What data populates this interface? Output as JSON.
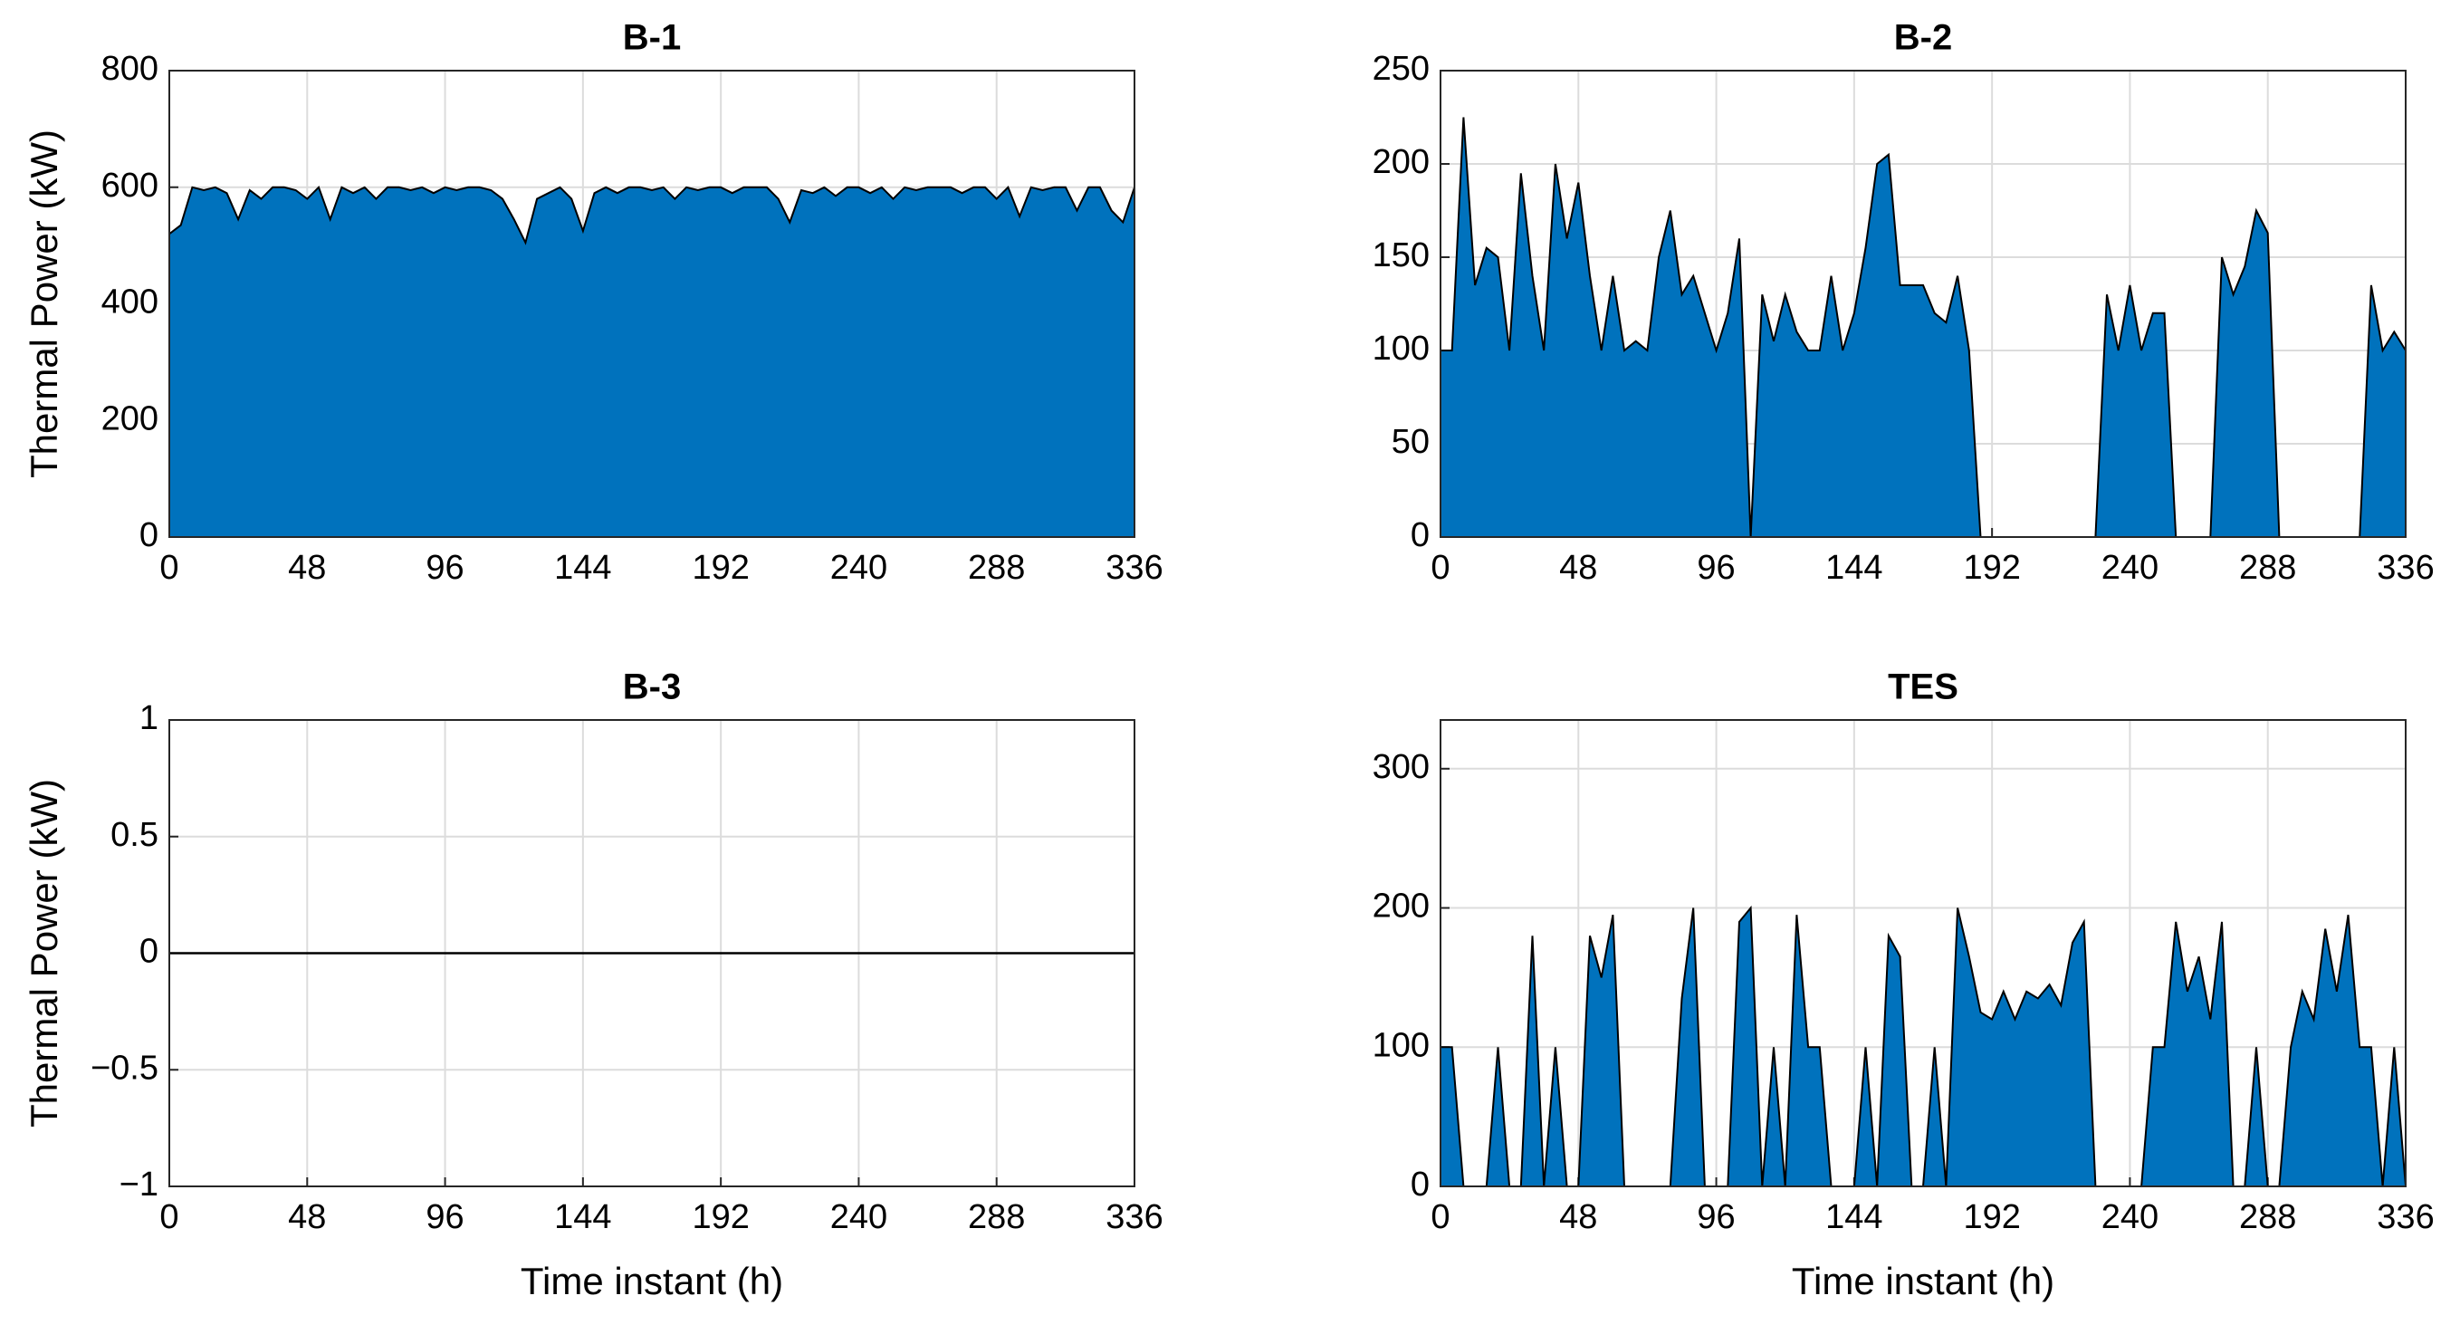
{
  "chart_data": [
    {
      "type": "area",
      "title": "B-1",
      "ylabel": "Thermal Power (kW)",
      "color": "#0072bd",
      "edge_color": "#000000",
      "grid": true,
      "xlim": [
        0,
        336
      ],
      "xticks": [
        0,
        48,
        96,
        144,
        192,
        240,
        288,
        336
      ],
      "ylim": [
        0,
        800
      ],
      "yticks": [
        0,
        200,
        400,
        600,
        800
      ],
      "x": [
        0,
        4,
        8,
        12,
        16,
        20,
        24,
        28,
        32,
        36,
        40,
        44,
        48,
        52,
        56,
        60,
        64,
        68,
        72,
        76,
        80,
        84,
        88,
        92,
        96,
        100,
        104,
        108,
        112,
        116,
        120,
        124,
        128,
        132,
        136,
        140,
        144,
        148,
        152,
        156,
        160,
        164,
        168,
        172,
        176,
        180,
        184,
        188,
        192,
        196,
        200,
        204,
        208,
        212,
        216,
        220,
        224,
        228,
        232,
        236,
        240,
        244,
        248,
        252,
        256,
        260,
        264,
        268,
        272,
        276,
        280,
        284,
        288,
        292,
        296,
        300,
        304,
        308,
        312,
        316,
        320,
        324,
        328,
        332,
        336
      ],
      "values": [
        520,
        535,
        600,
        595,
        600,
        590,
        545,
        595,
        580,
        600,
        600,
        595,
        580,
        600,
        545,
        600,
        590,
        600,
        580,
        600,
        600,
        595,
        600,
        590,
        600,
        595,
        600,
        600,
        595,
        580,
        545,
        505,
        580,
        590,
        600,
        580,
        525,
        590,
        600,
        590,
        600,
        600,
        595,
        600,
        580,
        600,
        595,
        600,
        600,
        590,
        600,
        600,
        600,
        580,
        540,
        595,
        590,
        600,
        585,
        600,
        600,
        590,
        600,
        580,
        600,
        595,
        600,
        600,
        600,
        590,
        600,
        600,
        580,
        600,
        550,
        600,
        595,
        600,
        600,
        560,
        600,
        600,
        560,
        540,
        600
      ]
    },
    {
      "type": "area",
      "title": "B-2",
      "color": "#0072bd",
      "edge_color": "#000000",
      "grid": true,
      "xlim": [
        0,
        336
      ],
      "xticks": [
        0,
        48,
        96,
        144,
        192,
        240,
        288,
        336
      ],
      "ylim": [
        0,
        250
      ],
      "yticks": [
        0,
        50,
        100,
        150,
        200,
        250
      ],
      "x": [
        0,
        4,
        8,
        12,
        16,
        20,
        24,
        28,
        32,
        36,
        40,
        44,
        48,
        52,
        56,
        60,
        64,
        68,
        72,
        76,
        80,
        84,
        88,
        92,
        96,
        100,
        104,
        108,
        112,
        116,
        120,
        124,
        128,
        132,
        136,
        140,
        144,
        148,
        152,
        156,
        160,
        164,
        168,
        172,
        176,
        180,
        184,
        188,
        192,
        196,
        200,
        204,
        208,
        212,
        216,
        220,
        224,
        228,
        232,
        236,
        240,
        244,
        248,
        252,
        256,
        260,
        264,
        268,
        272,
        276,
        280,
        284,
        288,
        292,
        296,
        300,
        304,
        308,
        312,
        316,
        320,
        324,
        328,
        332,
        336
      ],
      "values": [
        100,
        100,
        225,
        135,
        155,
        150,
        100,
        195,
        140,
        100,
        200,
        160,
        190,
        140,
        100,
        140,
        100,
        105,
        100,
        150,
        175,
        130,
        140,
        120,
        100,
        120,
        160,
        0,
        130,
        105,
        130,
        110,
        100,
        100,
        140,
        100,
        120,
        155,
        200,
        205,
        135,
        135,
        135,
        120,
        115,
        140,
        100,
        0,
        0,
        0,
        0,
        0,
        0,
        0,
        0,
        0,
        0,
        0,
        130,
        100,
        135,
        100,
        120,
        120,
        0,
        0,
        0,
        0,
        150,
        130,
        145,
        175,
        163,
        0,
        0,
        0,
        0,
        0,
        0,
        0,
        0,
        135,
        100,
        110,
        100
      ]
    },
    {
      "type": "line",
      "title": "B-3",
      "ylabel": "Thermal Power (kW)",
      "xlabel": "Time instant (h)",
      "color": "#000000",
      "grid": true,
      "xlim": [
        0,
        336
      ],
      "xticks": [
        0,
        48,
        96,
        144,
        192,
        240,
        288,
        336
      ],
      "ylim": [
        -1,
        1
      ],
      "yticks": [
        {
          "value": -1,
          "label": "−1"
        },
        {
          "value": -0.5,
          "label": "−0.5"
        },
        0,
        0.5,
        1
      ],
      "x": [
        0,
        336
      ],
      "values": [
        0,
        0
      ]
    },
    {
      "type": "area",
      "title": "TES",
      "xlabel": "Time instant (h)",
      "color": "#0072bd",
      "edge_color": "#000000",
      "grid": true,
      "xlim": [
        0,
        336
      ],
      "xticks": [
        0,
        48,
        96,
        144,
        192,
        240,
        288,
        336
      ],
      "ylim": [
        0,
        335
      ],
      "yticks": [
        0,
        100,
        200,
        300
      ],
      "x": [
        0,
        4,
        8,
        12,
        16,
        20,
        24,
        28,
        32,
        36,
        40,
        44,
        48,
        52,
        56,
        60,
        64,
        68,
        72,
        76,
        80,
        84,
        88,
        92,
        96,
        100,
        104,
        108,
        112,
        116,
        120,
        124,
        128,
        132,
        136,
        140,
        144,
        148,
        152,
        156,
        160,
        164,
        168,
        172,
        176,
        180,
        184,
        188,
        192,
        196,
        200,
        204,
        208,
        212,
        216,
        220,
        224,
        228,
        232,
        236,
        240,
        244,
        248,
        252,
        256,
        260,
        264,
        268,
        272,
        276,
        280,
        284,
        288,
        292,
        296,
        300,
        304,
        308,
        312,
        316,
        320,
        324,
        328,
        332,
        336
      ],
      "values": [
        100,
        100,
        0,
        0,
        0,
        100,
        0,
        0,
        180,
        0,
        100,
        0,
        0,
        180,
        150,
        195,
        0,
        0,
        0,
        0,
        0,
        135,
        200,
        0,
        0,
        0,
        190,
        200,
        0,
        100,
        0,
        195,
        100,
        100,
        0,
        0,
        0,
        100,
        0,
        180,
        165,
        0,
        0,
        100,
        0,
        200,
        165,
        125,
        120,
        140,
        120,
        140,
        135,
        145,
        130,
        175,
        190,
        0,
        0,
        0,
        0,
        0,
        100,
        100,
        190,
        140,
        165,
        120,
        190,
        0,
        0,
        100,
        0,
        0,
        100,
        140,
        120,
        185,
        140,
        195,
        100,
        100,
        0,
        100,
        0
      ]
    }
  ]
}
